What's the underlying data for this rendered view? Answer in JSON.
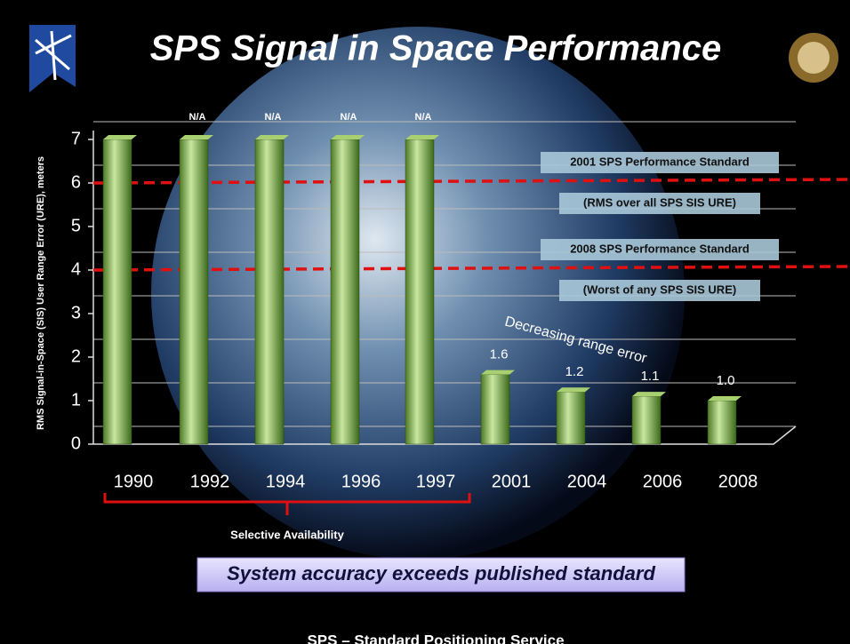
{
  "chart_data": {
    "type": "bar",
    "title": "SPS Signal in Space Performance",
    "y_label": "RMS Signal-in-Space (SIS) User Range Error (URE), meters",
    "categories": [
      "1990",
      "1992",
      "1994",
      "1996",
      "1997",
      "2001",
      "2004",
      "2006",
      "2008"
    ],
    "values": [
      7,
      7,
      7,
      7,
      7,
      1.6,
      1.2,
      1.1,
      1.0
    ],
    "value_labels": [
      null,
      "N/A",
      "N/A",
      "N/A",
      "N/A",
      "1.6",
      "1.2",
      "1.1",
      "1.0"
    ],
    "color": "#7fb04a",
    "ylim": [
      0,
      7
    ],
    "yticks": [
      0,
      1,
      2,
      3,
      4,
      5,
      6,
      7
    ],
    "grid": true,
    "reference_lines": [
      {
        "value": 6,
        "color": "#e01010",
        "label": "2001 SPS Performance Standard",
        "sublabel": "(RMS over all SPS SIS URE)"
      },
      {
        "value": 4,
        "color": "#e01010",
        "label": "2008 SPS Performance Standard",
        "sublabel": "(Worst of any SPS SIS URE)"
      }
    ],
    "annotations": {
      "trend": "Decreasing range error",
      "bracket": "Selective Availability",
      "banner": "System accuracy exceeds published standard",
      "footer": "SPS – Standard Positioning Service"
    }
  }
}
